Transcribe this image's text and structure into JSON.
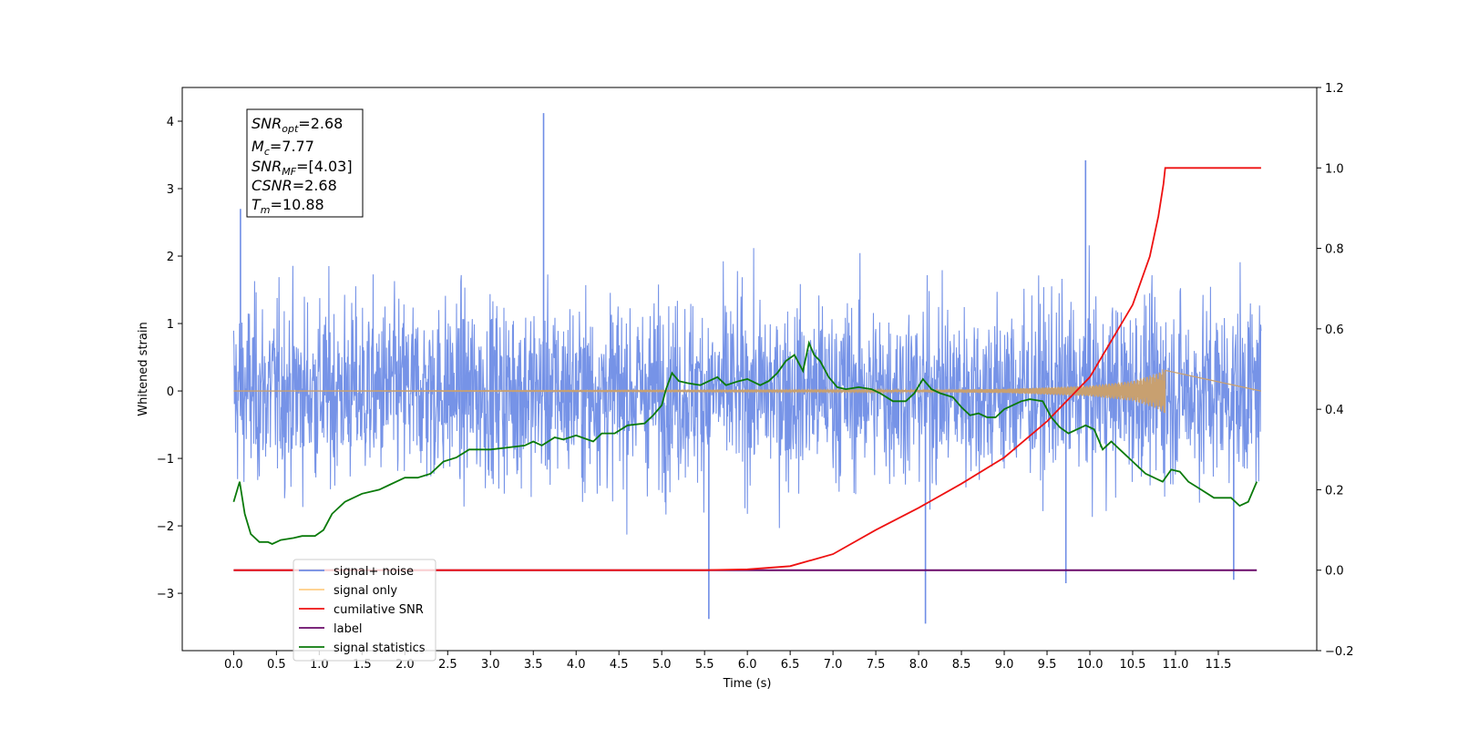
{
  "chart_data": {
    "type": "line",
    "title": "",
    "xlabel": "Time (s)",
    "ylabel": "Whitened strain",
    "xlim": [
      -0.6,
      12.65
    ],
    "ylim": [
      -3.85,
      4.5
    ],
    "y2lim": [
      -0.2,
      1.2
    ],
    "x_ticks": [
      "0.0",
      "0.5",
      "1.0",
      "1.5",
      "2.0",
      "2.5",
      "3.0",
      "3.5",
      "4.0",
      "4.5",
      "5.0",
      "5.5",
      "6.0",
      "6.5",
      "7.0",
      "7.5",
      "8.0",
      "8.5",
      "9.0",
      "9.5",
      "10.0",
      "10.5",
      "11.0",
      "11.5"
    ],
    "y_ticks": [
      "4",
      "3",
      "2",
      "1",
      "0",
      "−1",
      "−2",
      "−3"
    ],
    "y2_ticks": [
      "1.2",
      "1.0",
      "0.8",
      "0.6",
      "0.4",
      "0.2",
      "0.0",
      "−0.2"
    ],
    "grid": false,
    "legend_position": "lower-left",
    "annotation": {
      "snr_opt": "=2.68",
      "mc": "=7.77",
      "snr_mf": "=[4.03]",
      "csnr": "=2.68",
      "tm": "=10.88"
    },
    "series": [
      {
        "name": "signal+ noise",
        "color": "#6f8de6",
        "axis": "left",
        "style": "noise band, approx. amplitude ±1.5, extremes -3.45 to 4.12",
        "x_range": [
          0.0,
          12.0
        ],
        "spikes": [
          {
            "x": 3.62,
            "y": 4.12
          },
          {
            "x": 0.08,
            "y": 2.7
          },
          {
            "x": 9.95,
            "y": 3.42
          },
          {
            "x": 8.08,
            "y": -3.45
          },
          {
            "x": 5.55,
            "y": -3.38
          },
          {
            "x": 9.72,
            "y": -2.85
          },
          {
            "x": 11.68,
            "y": -2.8
          }
        ]
      },
      {
        "name": "signal only",
        "color": "#ffbb55",
        "axis": "left",
        "x_range": [
          0.0,
          10.88
        ],
        "envelope": [
          [
            7.5,
            0.01
          ],
          [
            9.0,
            0.03
          ],
          [
            10.0,
            0.08
          ],
          [
            10.5,
            0.15
          ],
          [
            10.8,
            0.27
          ],
          [
            10.88,
            0.35
          ]
        ]
      },
      {
        "name": "cumilative SNR",
        "color": "#ee1111",
        "axis": "right",
        "x": [
          0.0,
          5.5,
          6.0,
          6.5,
          7.0,
          7.5,
          8.0,
          8.5,
          9.0,
          9.5,
          10.0,
          10.5,
          10.7,
          10.8,
          10.86,
          10.88,
          12.0
        ],
        "y": [
          0.0,
          0.0,
          0.002,
          0.01,
          0.04,
          0.1,
          0.155,
          0.215,
          0.28,
          0.37,
          0.48,
          0.66,
          0.78,
          0.88,
          0.96,
          1.0,
          1.0
        ]
      },
      {
        "name": "label",
        "color": "#6a0a6a",
        "axis": "right",
        "x": [
          0.0,
          11.95
        ],
        "y": [
          0.0,
          0.0
        ]
      },
      {
        "name": "signal statistics",
        "color": "#0a7a0a",
        "axis": "right",
        "x": [
          0.0,
          0.07,
          0.13,
          0.2,
          0.3,
          0.4,
          0.45,
          0.55,
          0.7,
          0.8,
          0.95,
          1.05,
          1.15,
          1.3,
          1.5,
          1.7,
          1.8,
          1.9,
          2.0,
          2.15,
          2.3,
          2.45,
          2.6,
          2.75,
          2.9,
          3.0,
          3.2,
          3.4,
          3.5,
          3.6,
          3.75,
          3.85,
          4.0,
          4.2,
          4.3,
          4.45,
          4.6,
          4.8,
          4.9,
          5.0,
          5.05,
          5.12,
          5.2,
          5.3,
          5.45,
          5.55,
          5.65,
          5.75,
          5.9,
          6.0,
          6.15,
          6.25,
          6.35,
          6.45,
          6.55,
          6.65,
          6.72,
          6.78,
          6.85,
          6.95,
          7.05,
          7.15,
          7.3,
          7.45,
          7.55,
          7.7,
          7.85,
          7.95,
          8.05,
          8.15,
          8.25,
          8.4,
          8.5,
          8.6,
          8.7,
          8.8,
          8.9,
          9.0,
          9.1,
          9.2,
          9.3,
          9.45,
          9.55,
          9.65,
          9.75,
          9.85,
          9.95,
          10.05,
          10.15,
          10.25,
          10.35,
          10.5,
          10.65,
          10.75,
          10.85,
          10.95,
          11.05,
          11.15,
          11.3,
          11.45,
          11.55,
          11.65,
          11.75,
          11.85,
          11.95
        ],
        "y": [
          0.17,
          0.22,
          0.14,
          0.09,
          0.07,
          0.07,
          0.065,
          0.075,
          0.08,
          0.085,
          0.085,
          0.1,
          0.14,
          0.17,
          0.19,
          0.2,
          0.21,
          0.22,
          0.23,
          0.23,
          0.24,
          0.27,
          0.28,
          0.3,
          0.3,
          0.3,
          0.305,
          0.31,
          0.32,
          0.31,
          0.33,
          0.325,
          0.335,
          0.32,
          0.34,
          0.34,
          0.36,
          0.365,
          0.385,
          0.41,
          0.45,
          0.49,
          0.47,
          0.465,
          0.46,
          0.47,
          0.48,
          0.46,
          0.47,
          0.475,
          0.46,
          0.47,
          0.49,
          0.52,
          0.535,
          0.495,
          0.565,
          0.535,
          0.52,
          0.48,
          0.455,
          0.45,
          0.455,
          0.45,
          0.44,
          0.42,
          0.42,
          0.44,
          0.475,
          0.45,
          0.44,
          0.43,
          0.405,
          0.385,
          0.39,
          0.38,
          0.38,
          0.4,
          0.41,
          0.42,
          0.425,
          0.42,
          0.38,
          0.355,
          0.34,
          0.35,
          0.36,
          0.35,
          0.3,
          0.32,
          0.3,
          0.27,
          0.24,
          0.23,
          0.22,
          0.25,
          0.245,
          0.22,
          0.2,
          0.18,
          0.18,
          0.18,
          0.16,
          0.17,
          0.22
        ]
      }
    ]
  }
}
